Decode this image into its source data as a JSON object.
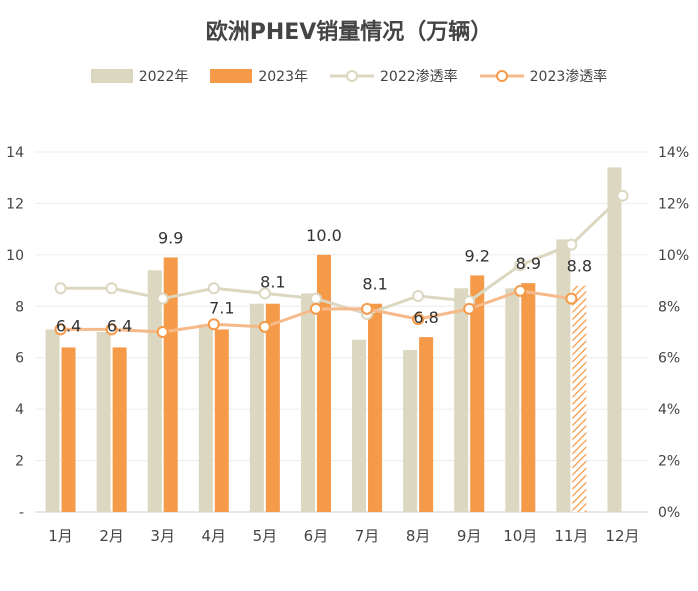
{
  "chart_data": {
    "type": "bar",
    "title": "欧洲PHEV销量情况（万辆）",
    "categories": [
      "1月",
      "2月",
      "3月",
      "4月",
      "5月",
      "6月",
      "7月",
      "8月",
      "9月",
      "10月",
      "11月",
      "12月"
    ],
    "series": [
      {
        "name": "2022年",
        "kind": "bar",
        "axis": "left",
        "color": "#dcd7c0",
        "values": [
          7.1,
          7.0,
          9.4,
          7.3,
          8.1,
          8.5,
          6.7,
          6.3,
          8.7,
          8.7,
          10.6,
          13.4
        ]
      },
      {
        "name": "2023年",
        "kind": "bar",
        "axis": "left",
        "color": "#f59a49",
        "values": [
          6.4,
          6.4,
          9.9,
          7.1,
          8.1,
          10.0,
          8.1,
          6.8,
          9.2,
          8.9,
          8.8,
          null
        ],
        "labels": [
          "6.4",
          "6.4",
          "9.9",
          "7.1",
          "8.1",
          "10.0",
          "8.1",
          "6.8",
          "9.2",
          "8.9",
          "8.8",
          ""
        ],
        "hatched_index": 10
      },
      {
        "name": "2022渗透率",
        "kind": "line",
        "axis": "right",
        "color": "#dcd7c0",
        "values": [
          0.087,
          0.087,
          0.083,
          0.087,
          0.085,
          0.083,
          0.077,
          0.084,
          0.082,
          0.096,
          0.104,
          0.123
        ]
      },
      {
        "name": "2023渗透率",
        "kind": "line",
        "axis": "right",
        "color": "#f6b98a",
        "values": [
          0.071,
          0.071,
          0.07,
          0.073,
          0.072,
          0.079,
          0.079,
          0.075,
          0.079,
          0.086,
          0.083,
          null
        ]
      }
    ],
    "ylim": [
      0,
      14
    ],
    "yticks": [
      "-",
      "2",
      "4",
      "6",
      "8",
      "10",
      "12",
      "14"
    ],
    "y2lim": [
      0,
      0.14
    ],
    "y2ticks": [
      "0%",
      "2%",
      "4%",
      "6%",
      "8%",
      "10%",
      "12%",
      "14%"
    ],
    "grid": true,
    "legend_position": "top"
  }
}
